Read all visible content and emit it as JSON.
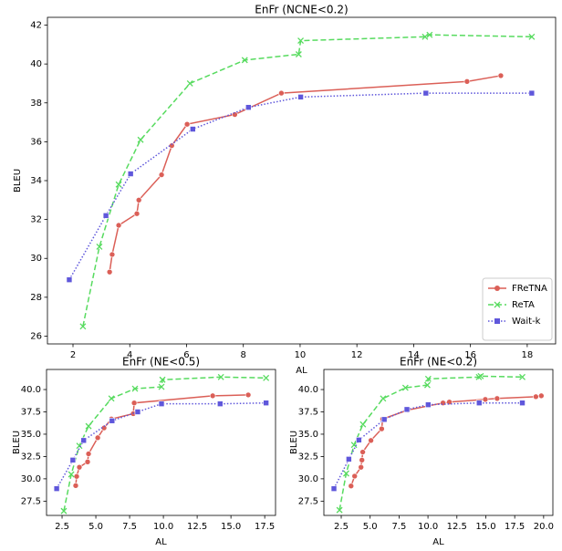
{
  "chart_data": [
    {
      "type": "line",
      "title": "EnFr (NCNE<0.2)",
      "x_label": "AL",
      "y_label": "BLEU",
      "xlim": [
        1.1,
        19.0
      ],
      "ylim": [
        25.6,
        42.4
      ],
      "xticks": [
        2,
        4,
        6,
        8,
        10,
        12,
        14,
        16,
        18
      ],
      "yticks": [
        26,
        28,
        30,
        32,
        34,
        36,
        38,
        40,
        42
      ],
      "legend": "lower right",
      "series": [
        {
          "name": "FReTNA",
          "color": "#db5f57",
          "marker": "o",
          "linestyle": "solid",
          "x": [
            3.29,
            3.38,
            3.61,
            4.25,
            4.32,
            5.12,
            5.48,
            6.02,
            7.7,
            9.34,
            15.88,
            17.07
          ],
          "values": [
            29.3,
            30.2,
            31.7,
            32.3,
            33.0,
            34.3,
            35.8,
            36.9,
            37.4,
            38.5,
            39.1,
            39.4
          ]
        },
        {
          "name": "ReTA",
          "color": "#57db5f",
          "marker": "x",
          "linestyle": "dashed",
          "x": [
            2.35,
            2.93,
            3.61,
            4.38,
            6.12,
            8.05,
            9.95,
            10.02,
            14.4,
            14.56,
            18.16
          ],
          "values": [
            26.5,
            30.6,
            33.8,
            36.1,
            39.0,
            40.2,
            40.5,
            41.2,
            41.4,
            41.5,
            41.4
          ]
        },
        {
          "name": "Wait-k",
          "color": "#5f57db",
          "marker": "s",
          "linestyle": "dotted",
          "x": [
            1.87,
            3.16,
            4.03,
            6.22,
            8.18,
            10.02,
            14.43,
            18.16
          ],
          "values": [
            28.9,
            32.2,
            34.35,
            36.65,
            37.77,
            38.3,
            38.5,
            38.5
          ]
        }
      ]
    },
    {
      "type": "line",
      "title": "EnFr (NE<0.5)",
      "x_label": "AL",
      "y_label": "BLEU",
      "xlim": [
        1.35,
        18.3
      ],
      "ylim": [
        25.9,
        42.25
      ],
      "xticks": [
        2.5,
        {
          "value": 5,
          "label": "5.0"
        },
        7.5,
        {
          "value": 10,
          "label": "10.0"
        },
        12.5,
        {
          "value": 15,
          "label": "15.0"
        },
        17.5
      ],
      "yticks": [
        27.5,
        {
          "value": 30,
          "label": "30.0"
        },
        32.5,
        {
          "value": 35,
          "label": "35.0"
        },
        37.5,
        {
          "value": 40,
          "label": "40.0"
        }
      ],
      "series": [
        {
          "name": "FReTNA",
          "color": "#db5f57",
          "marker": "o",
          "linestyle": "solid",
          "x": [
            3.51,
            3.58,
            3.78,
            4.39,
            4.46,
            5.14,
            5.61,
            6.15,
            7.77,
            7.84,
            13.65,
            16.28
          ],
          "values": [
            29.24,
            30.27,
            31.3,
            31.9,
            32.8,
            34.6,
            35.7,
            36.7,
            37.3,
            38.5,
            39.3,
            39.4
          ]
        },
        {
          "name": "ReTA",
          "color": "#57db5f",
          "marker": "x",
          "linestyle": "dashed",
          "x": [
            2.63,
            3.18,
            3.78,
            4.46,
            6.15,
            7.9,
            9.86,
            9.93,
            14.26,
            17.6
          ],
          "values": [
            26.4,
            30.5,
            33.7,
            35.9,
            39.0,
            40.1,
            40.3,
            41.1,
            41.4,
            41.3
          ]
        },
        {
          "name": "Wait-k",
          "color": "#5f57db",
          "marker": "s",
          "linestyle": "dotted",
          "x": [
            2.1,
            3.3,
            4.1,
            6.2,
            8.1,
            9.86,
            14.2,
            17.6
          ],
          "values": [
            28.9,
            32.1,
            34.3,
            36.5,
            37.5,
            38.4,
            38.4,
            38.5
          ]
        }
      ]
    },
    {
      "type": "line",
      "title": "EnFr (NE<0.2)",
      "x_label": "AL",
      "y_label": "BLEU",
      "xlim": [
        1.0,
        20.8
      ],
      "ylim": [
        25.9,
        42.25
      ],
      "xticks": [
        2.5,
        {
          "value": 5,
          "label": "5.0"
        },
        7.5,
        {
          "value": 10,
          "label": "10.0"
        },
        12.5,
        {
          "value": 15,
          "label": "15.0"
        },
        17.5,
        {
          "value": 20,
          "label": "20.0"
        }
      ],
      "yticks": [
        27.5,
        {
          "value": 30,
          "label": "30.0"
        },
        32.5,
        {
          "value": 35,
          "label": "35.0"
        },
        37.5,
        {
          "value": 40,
          "label": "40.0"
        }
      ],
      "series": [
        {
          "name": "FReTNA",
          "color": "#db5f57",
          "marker": "o",
          "linestyle": "solid",
          "x": [
            3.35,
            3.66,
            4.21,
            4.29,
            4.36,
            5.07,
            6.0,
            6.08,
            8.26,
            11.3,
            11.85,
            14.96,
            15.98,
            19.33,
            19.8
          ],
          "values": [
            29.2,
            30.3,
            31.3,
            32.1,
            33.0,
            34.3,
            35.6,
            36.7,
            37.7,
            38.5,
            38.6,
            38.9,
            39.0,
            39.2,
            39.3
          ]
        },
        {
          "name": "ReTA",
          "color": "#57db5f",
          "marker": "x",
          "linestyle": "dashed",
          "x": [
            2.35,
            2.93,
            3.61,
            4.38,
            6.12,
            8.05,
            9.95,
            10.02,
            14.4,
            14.56,
            18.16
          ],
          "values": [
            26.5,
            30.6,
            33.8,
            36.1,
            39.0,
            40.2,
            40.5,
            41.2,
            41.4,
            41.5,
            41.4
          ]
        },
        {
          "name": "Wait-k",
          "color": "#5f57db",
          "marker": "s",
          "linestyle": "dotted",
          "x": [
            1.87,
            3.16,
            4.03,
            6.22,
            8.18,
            10.02,
            14.43,
            18.16
          ],
          "values": [
            28.9,
            32.2,
            34.35,
            36.65,
            37.77,
            38.3,
            38.5,
            38.5
          ]
        }
      ]
    }
  ]
}
